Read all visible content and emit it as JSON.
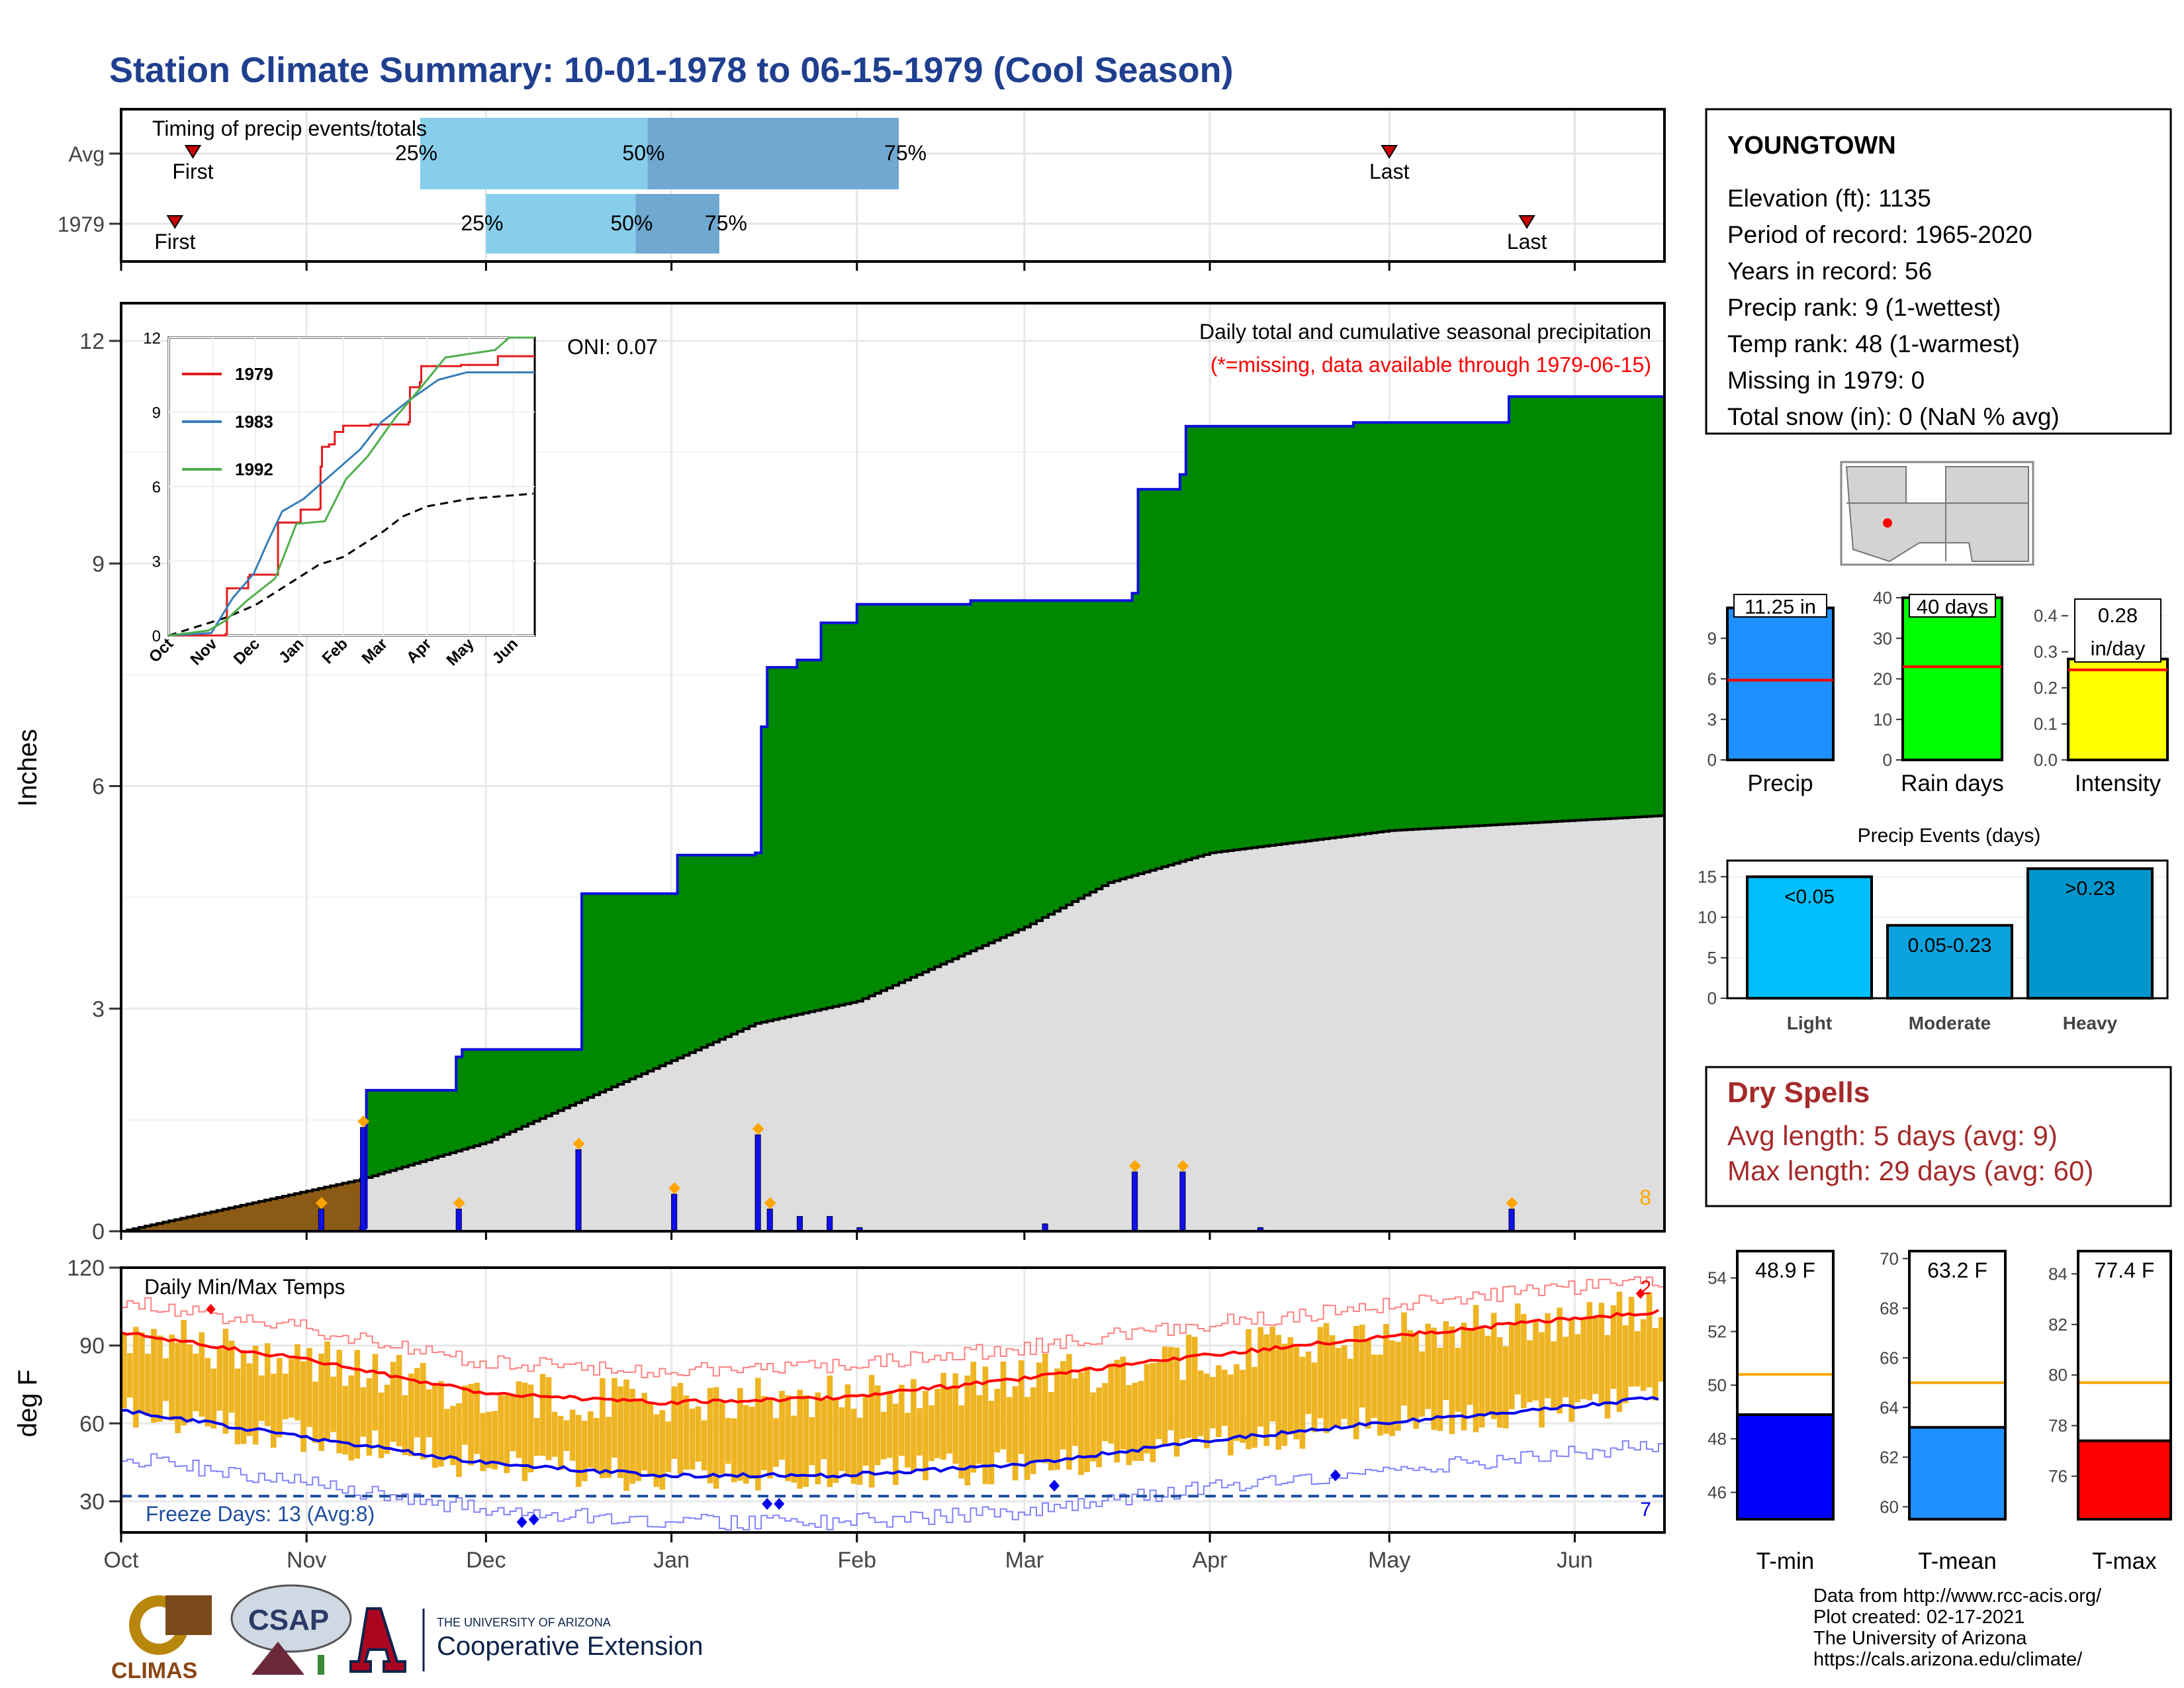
{
  "title": "Station Climate Summary: 10-01-1978 to 06-15-1979 (Cool Season)",
  "months": [
    "Oct",
    "Nov",
    "Dec",
    "Jan",
    "Feb",
    "Mar",
    "Apr",
    "May",
    "Jun"
  ],
  "timing": {
    "label": "Timing of precip events/totals",
    "rows": [
      {
        "name": "Avg",
        "first": "First",
        "last": "Last",
        "p25": "25%",
        "p50": "50%",
        "p75": "75%",
        "first_day": 12,
        "last_day": 212,
        "q25_day": 50,
        "q50_day": 88,
        "q75_day": 130
      },
      {
        "name": "1979",
        "first": "First",
        "last": "Last",
        "p25": "25%",
        "p50": "50%",
        "p75": "75%",
        "first_day": 9,
        "last_day": 235,
        "q25_day": 61,
        "q50_day": 86,
        "q75_day": 100
      }
    ]
  },
  "precip_panel": {
    "ylabel": "Inches",
    "yticks": [
      0,
      3,
      6,
      9,
      12
    ],
    "subtitle": "Daily total and cumulative seasonal precipitation",
    "missing_note": "(*=missing, data available through 1979-06-15)",
    "oni": "ONI: 0.07",
    "count_label": "8"
  },
  "inset": {
    "yticks": [
      0,
      3,
      6,
      9,
      12
    ],
    "legend": [
      "1979",
      "1983",
      "1992"
    ]
  },
  "temp_panel": {
    "ylabel": "deg F",
    "yticks": [
      30,
      60,
      90,
      120
    ],
    "label": "Daily Min/Max Temps",
    "freeze": "Freeze Days: 13 (Avg:8)",
    "hot_count": "2",
    "cold_count": "7"
  },
  "station": {
    "name": "YOUNGTOWN",
    "lines": [
      "Elevation (ft): 1135",
      "Period of record: 1965-2020",
      "Years in record: 56",
      "Precip rank: 9 (1-wettest)",
      "Temp rank: 48 (1-warmest)",
      "Missing in 1979: 0",
      "Total snow (in): 0 (NaN % avg)"
    ]
  },
  "small_bars": [
    {
      "label": "Precip",
      "value_text": "11.25 in",
      "value": 11.25,
      "avg": 5.9,
      "ymax": 12,
      "ticks": [
        0,
        3,
        6,
        9
      ],
      "color": "#1E90FF"
    },
    {
      "label": "Rain days",
      "value_text": "40 days",
      "value": 40,
      "avg": 23,
      "ymax": 40,
      "ticks": [
        0,
        10,
        20,
        30,
        40
      ],
      "color": "#00FF00"
    },
    {
      "label": "Intensity",
      "value_text": "0.28",
      "value_text2": "in/day",
      "value": 0.28,
      "avg": 0.25,
      "ymax": 0.45,
      "ticks": [
        "0.0",
        "0.1",
        "0.2",
        "0.3",
        "0.4"
      ],
      "color": "#FFFF00"
    }
  ],
  "events": {
    "title": "Precip Events (days)",
    "yticks": [
      0,
      5,
      10,
      15
    ],
    "bars": [
      {
        "cat": "Light",
        "label": "<0.05",
        "value": 15,
        "color": "#00BFFF"
      },
      {
        "cat": "Moderate",
        "label": "0.05-0.23",
        "value": 9,
        "color": "#0AA3DE"
      },
      {
        "cat": "Heavy",
        "label": ">0.23",
        "value": 16,
        "color": "#0096CC"
      }
    ]
  },
  "dry_spells": {
    "title": "Dry Spells",
    "avg": "Avg length: 5 days (avg: 9)",
    "max": "Max length: 29 days (avg: 60)"
  },
  "temp_bars": [
    {
      "label": "T-min",
      "value_text": "48.9 F",
      "value": 48.9,
      "avg": 50.4,
      "ymin": 45,
      "ymax": 55,
      "ticks": [
        46,
        48,
        50,
        52,
        54
      ],
      "color": "#0000FF"
    },
    {
      "label": "T-mean",
      "value_text": "63.2 F",
      "value": 63.2,
      "avg": 65.0,
      "ymin": 59.5,
      "ymax": 70.3,
      "ticks": [
        60,
        62,
        64,
        66,
        68,
        70
      ],
      "color": "#1E90FF"
    },
    {
      "label": "T-max",
      "value_text": "77.4 F",
      "value": 77.4,
      "avg": 79.7,
      "ymin": 74.3,
      "ymax": 84.9,
      "ticks": [
        76,
        78,
        80,
        82,
        84
      ],
      "color": "#FF0000"
    }
  ],
  "credits": [
    "Data from http://www.rcc-acis.org/",
    "Plot created: 02-17-2021",
    "The University of Arizona",
    "https://cals.arizona.edu/climate/"
  ],
  "logos": {
    "climas": "CLIMAS",
    "csap": "CSAP",
    "ua_line1": "THE UNIVERSITY OF ARIZONA",
    "ua_line2": "Cooperative Extension"
  },
  "chart_data": [
    {
      "type": "area",
      "title": "Daily total and cumulative seasonal precipitation",
      "ylabel": "Inches",
      "ylim": [
        0,
        12.2
      ],
      "x_unit": "date",
      "cumulative_1979": {
        "x": [
          "1978-10-01",
          "1978-11-10",
          "1978-11-11",
          "1978-11-26",
          "1978-11-27",
          "1978-12-16",
          "1978-12-17",
          "1979-01-02",
          "1979-01-15",
          "1979-01-16",
          "1979-01-17",
          "1979-01-22",
          "1979-01-26",
          "1979-02-01",
          "1979-02-20",
          "1979-03-19",
          "1979-03-20",
          "1979-03-27",
          "1979-03-28",
          "1979-04-25",
          "1979-05-21",
          "1979-06-15"
        ],
        "y": [
          0.0,
          0.05,
          1.9,
          2.35,
          2.45,
          2.45,
          4.55,
          5.07,
          5.1,
          6.8,
          7.6,
          7.7,
          8.2,
          8.45,
          8.5,
          8.6,
          10.0,
          10.2,
          10.85,
          10.9,
          11.25,
          11.25
        ]
      },
      "average_cumulative": {
        "x": [
          "1978-10-01",
          "1978-11-10",
          "1978-12-01",
          "1979-01-01",
          "1979-01-15",
          "1979-02-01",
          "1979-03-01",
          "1979-03-15",
          "1979-04-01",
          "1979-05-01",
          "1979-06-15"
        ],
        "y": [
          0.0,
          0.7,
          1.2,
          2.3,
          2.8,
          3.1,
          4.1,
          4.7,
          5.1,
          5.4,
          5.6
        ]
      },
      "daily": {
        "x": [
          "1978-11-03",
          "1978-11-10",
          "1978-11-26",
          "1978-12-16",
          "1979-01-01",
          "1979-01-15",
          "1979-01-17",
          "1979-01-22",
          "1979-01-27",
          "1979-02-01",
          "1979-03-04",
          "1979-03-19",
          "1979-03-27",
          "1979-04-09",
          "1979-05-21"
        ],
        "y": [
          0.3,
          1.4,
          0.3,
          1.1,
          0.5,
          1.3,
          0.3,
          0.2,
          0.2,
          0.05,
          0.1,
          0.8,
          0.8,
          0.05,
          0.3
        ]
      }
    },
    {
      "type": "line",
      "title": "Daily Min/Max Temps",
      "ylabel": "deg F",
      "ylim": [
        18,
        120
      ],
      "series": [
        {
          "name": "avg max",
          "x": [
            0,
            30,
            60,
            90,
            120,
            150,
            180,
            210,
            240,
            257
          ],
          "y": [
            95,
            85,
            72,
            68,
            70,
            77,
            86,
            93,
            100,
            103
          ]
        },
        {
          "name": "avg min",
          "x": [
            0,
            30,
            60,
            90,
            120,
            150,
            180,
            210,
            240,
            257
          ],
          "y": [
            65,
            55,
            45,
            40,
            40,
            44,
            53,
            60,
            66,
            70
          ]
        }
      ]
    }
  ]
}
